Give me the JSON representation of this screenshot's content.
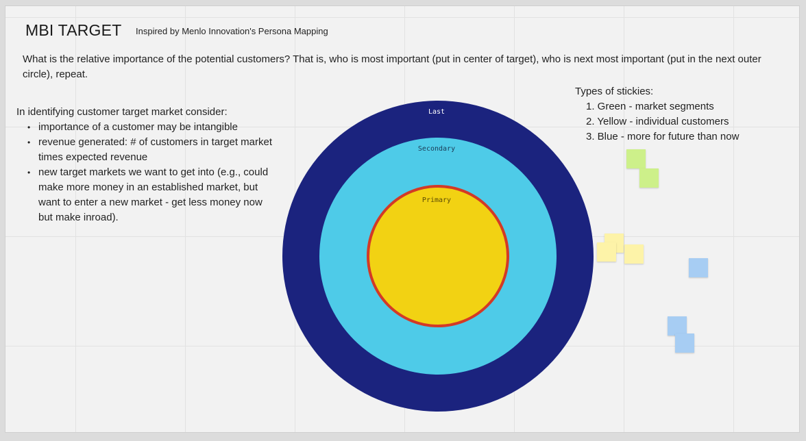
{
  "board": {
    "title": "MBI TARGET",
    "subtitle": "Inspired by Menlo Innovation's Persona Mapping",
    "question": "What is the relative importance of the potential customers? That is, who is most important (put in center of target), who is next most important (put in the next outer circle), repeat.",
    "consider": {
      "heading": "In identifying customer target market consider:",
      "items": [
        "importance of a customer may be intangible",
        "revenue generated: # of customers in target market times expected revenue",
        "new target markets we want to get into (e.g., could make more money in an established market, but want to enter a new market - get less money now but make inroad)."
      ]
    },
    "sticky_types": {
      "heading": "Types of stickies:",
      "items": [
        "1. Green - market segments",
        "2. Yellow - individual customers",
        "3. Blue - more for future than now"
      ]
    }
  },
  "target": {
    "rings": [
      {
        "label": "Last",
        "color": "#1b237e"
      },
      {
        "label": "Secondary",
        "color": "#4ecbe8"
      },
      {
        "label": "Primary",
        "color": "#f2d213",
        "border_color": "#d33a26"
      }
    ]
  },
  "stickies": [
    {
      "color": "green"
    },
    {
      "color": "green"
    },
    {
      "color": "yellow"
    },
    {
      "color": "yellow"
    },
    {
      "color": "yellow"
    },
    {
      "color": "blue"
    },
    {
      "color": "blue"
    },
    {
      "color": "blue"
    }
  ],
  "colors": {
    "sticky_green": "#cdf08a",
    "sticky_yellow": "#fdf3a8",
    "sticky_blue": "#a7cdf3",
    "board_background": "#f2f2f2"
  }
}
